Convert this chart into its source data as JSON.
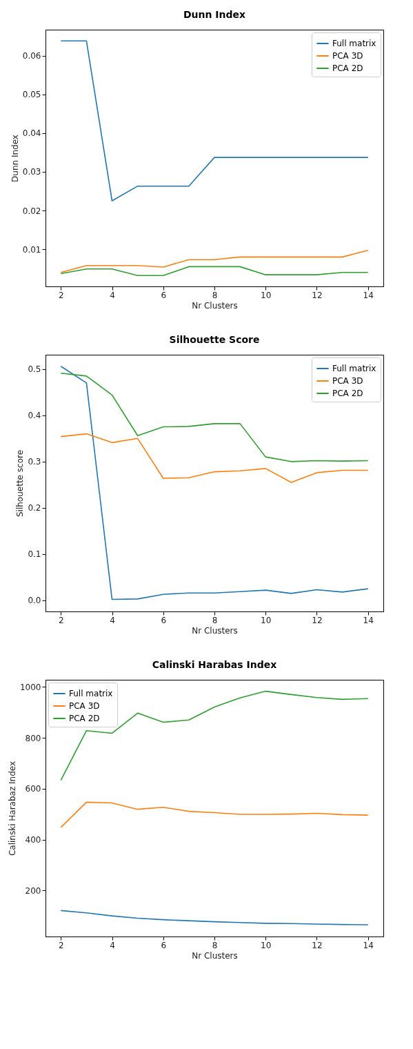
{
  "chart_data": [
    {
      "type": "line",
      "title": "Dunn Index",
      "xlabel": "Nr Clusters",
      "ylabel": "Dunn Index",
      "x": [
        2,
        3,
        4,
        5,
        6,
        7,
        8,
        9,
        10,
        11,
        12,
        13,
        14
      ],
      "xlim": [
        1.4,
        14.6
      ],
      "xticks": [
        2,
        4,
        6,
        8,
        10,
        12,
        14
      ],
      "ylim": [
        0.0004,
        0.0667
      ],
      "yticks": [
        0.01,
        0.02,
        0.03,
        0.04,
        0.05,
        0.06
      ],
      "legend": "top right",
      "series": [
        {
          "name": "Full matrix",
          "color": "#1f77b4",
          "values": [
            0.0638,
            0.0638,
            0.0225,
            0.0263,
            0.0263,
            0.0263,
            0.0337,
            0.0337,
            0.0337,
            0.0337,
            0.0337,
            0.0337,
            0.0337
          ]
        },
        {
          "name": "PCA 3D",
          "color": "#ff7f0e",
          "values": [
            0.004,
            0.0058,
            0.0058,
            0.0058,
            0.0054,
            0.0073,
            0.0073,
            0.008,
            0.008,
            0.008,
            0.008,
            0.008,
            0.0097
          ]
        },
        {
          "name": "PCA 2D",
          "color": "#2ca02c",
          "values": [
            0.0037,
            0.0049,
            0.0049,
            0.0032,
            0.0032,
            0.0055,
            0.0055,
            0.0055,
            0.0034,
            0.0034,
            0.0034,
            0.004,
            0.004
          ]
        }
      ]
    },
    {
      "type": "line",
      "title": "Silhouette Score",
      "xlabel": "Nr Clusters",
      "ylabel": "Silhouette score",
      "x": [
        2,
        3,
        4,
        5,
        6,
        7,
        8,
        9,
        10,
        11,
        12,
        13,
        14
      ],
      "xlim": [
        1.4,
        14.6
      ],
      "xticks": [
        2,
        4,
        6,
        8,
        10,
        12,
        14
      ],
      "ylim": [
        -0.024,
        0.531
      ],
      "yticks": [
        {
          "value": 0,
          "label": "0.0"
        },
        0.1,
        0.2,
        0.3,
        0.4,
        0.5
      ],
      "legend": "top right",
      "series": [
        {
          "name": "Full matrix",
          "color": "#1f77b4",
          "values": [
            0.506,
            0.47,
            0.002,
            0.003,
            0.013,
            0.016,
            0.016,
            0.019,
            0.022,
            0.015,
            0.023,
            0.018,
            0.025
          ]
        },
        {
          "name": "PCA 3D",
          "color": "#ff7f0e",
          "values": [
            0.354,
            0.36,
            0.341,
            0.35,
            0.264,
            0.265,
            0.278,
            0.28,
            0.285,
            0.255,
            0.276,
            0.281,
            0.281
          ]
        },
        {
          "name": "PCA 2D",
          "color": "#2ca02c",
          "values": [
            0.491,
            0.485,
            0.444,
            0.356,
            0.375,
            0.376,
            0.382,
            0.382,
            0.31,
            0.3,
            0.302,
            0.301,
            0.302
          ]
        }
      ]
    },
    {
      "type": "line",
      "title": "Calinski Harabas Index",
      "xlabel": "Nr Clusters",
      "ylabel": "Calinski Harabaz Index",
      "x": [
        2,
        3,
        4,
        5,
        6,
        7,
        8,
        9,
        10,
        11,
        12,
        13,
        14
      ],
      "xlim": [
        1.4,
        14.6
      ],
      "xticks": [
        2,
        4,
        6,
        8,
        10,
        12,
        14
      ],
      "ylim": [
        19,
        1028
      ],
      "yticks": [
        200,
        400,
        600,
        800,
        1000
      ],
      "legend": "top left",
      "series": [
        {
          "name": "Full matrix",
          "color": "#1f77b4",
          "values": [
            121,
            112,
            100,
            91,
            85,
            81,
            77,
            74,
            71,
            70,
            68,
            66,
            65
          ]
        },
        {
          "name": "PCA 3D",
          "color": "#ff7f0e",
          "values": [
            448,
            547,
            544,
            519,
            527,
            511,
            506,
            499,
            499,
            500,
            503,
            498,
            496
          ]
        },
        {
          "name": "PCA 2D",
          "color": "#2ca02c",
          "values": [
            633,
            828,
            818,
            897,
            861,
            870,
            921,
            957,
            983,
            970,
            958,
            951,
            954
          ]
        }
      ]
    }
  ]
}
